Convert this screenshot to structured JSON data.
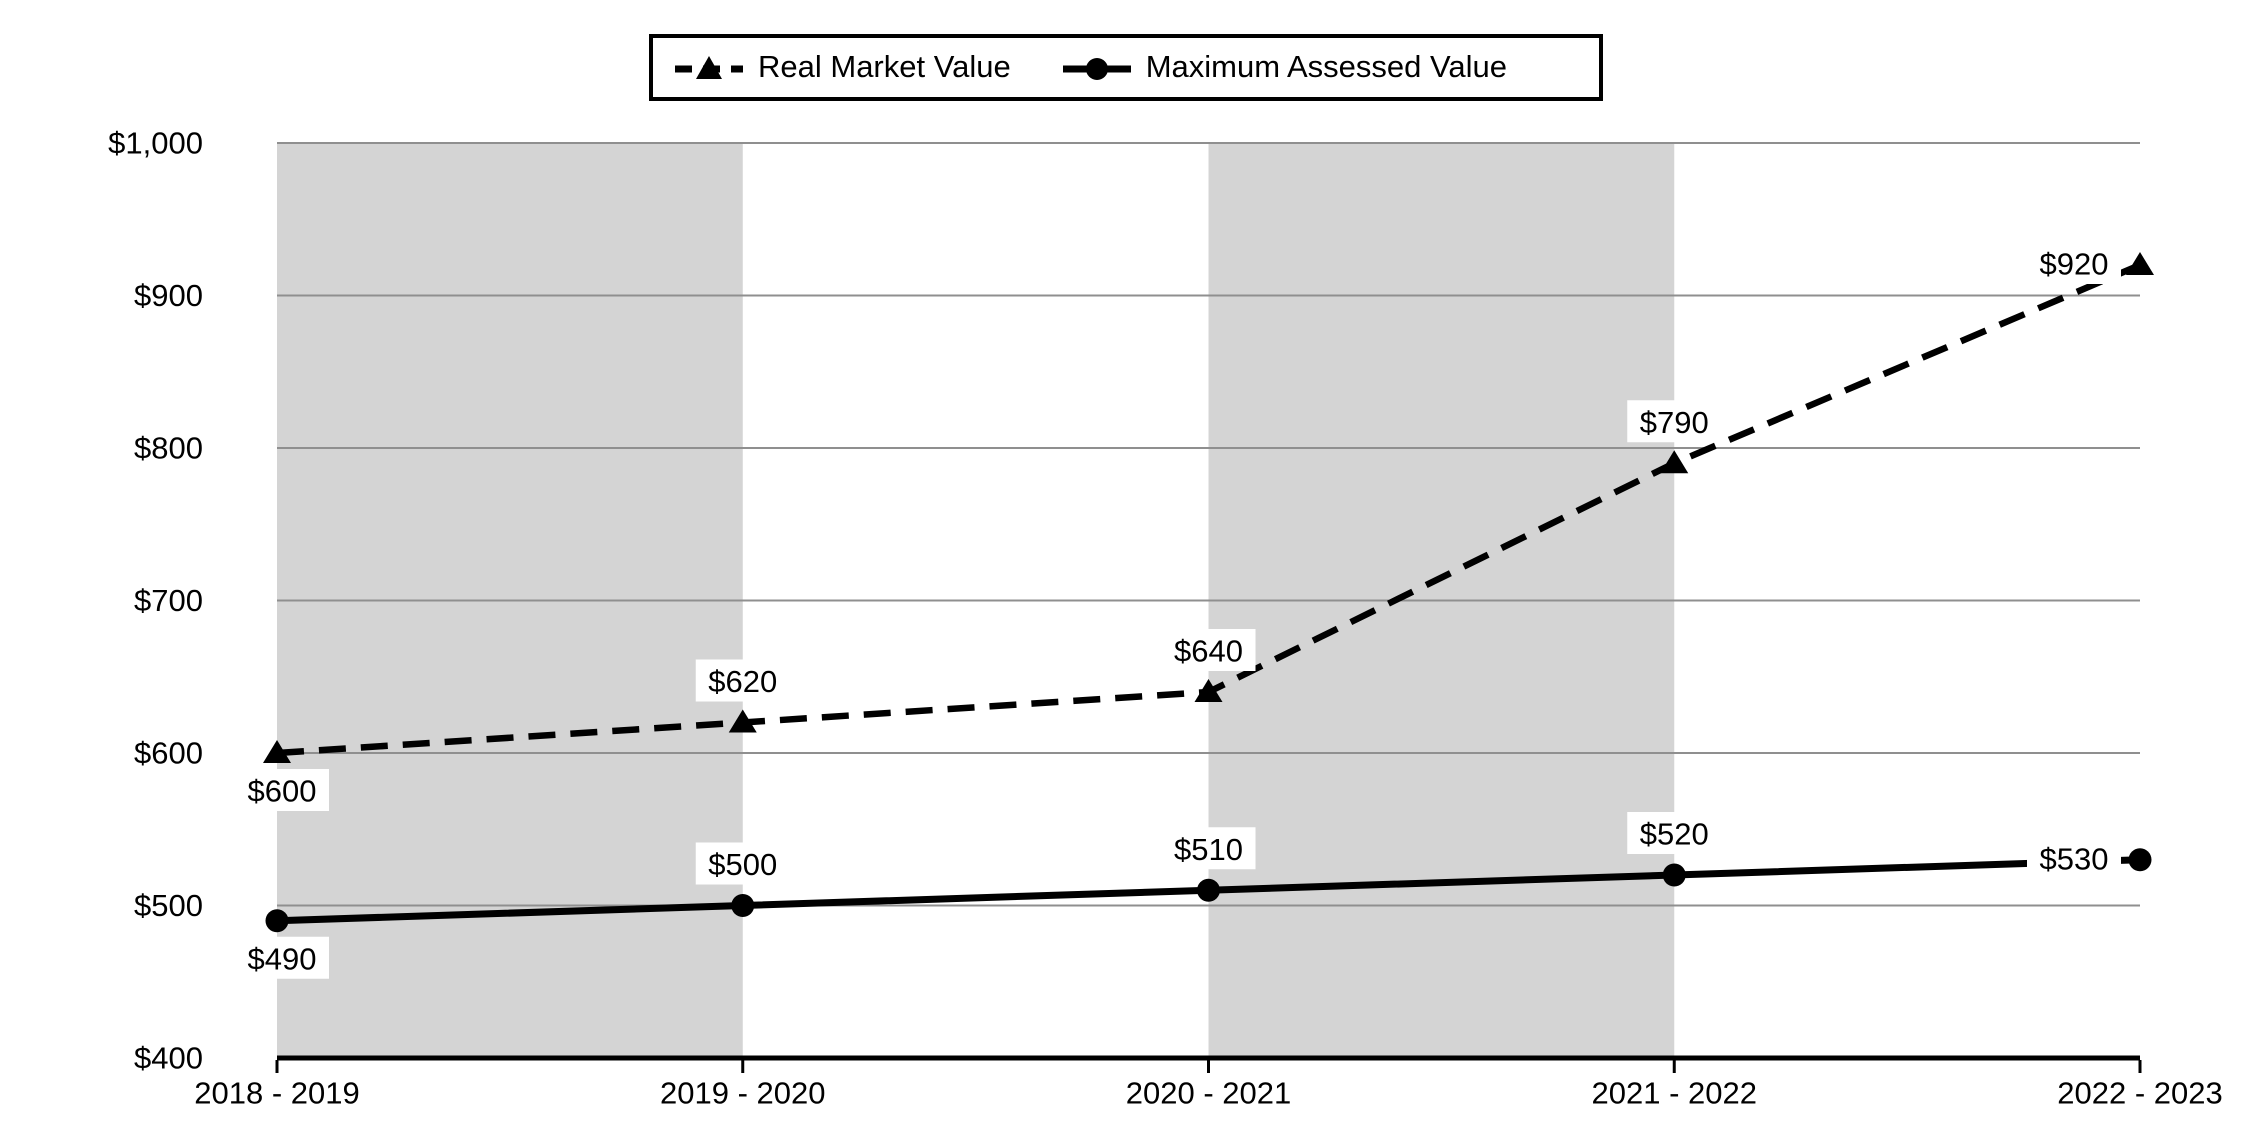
{
  "chart_data": {
    "type": "line",
    "title": "",
    "xlabel": "",
    "ylabel": "",
    "categories": [
      "2018 - 2019",
      "2019 - 2020",
      "2020 - 2021",
      "2021 - 2022",
      "2022 - 2023"
    ],
    "series": [
      {
        "name": "Real Market Value",
        "values": [
          600,
          620,
          640,
          790,
          920
        ],
        "line_style": "dashed",
        "marker": "triangle",
        "color": "#000000",
        "data_labels": [
          "$600",
          "$620",
          "$640",
          "$790",
          "$920"
        ],
        "label_placement": [
          "below",
          "above",
          "above",
          "above",
          "left"
        ]
      },
      {
        "name": "Maximum Assessed Value",
        "values": [
          490,
          500,
          510,
          520,
          530
        ],
        "line_style": "solid",
        "marker": "circle",
        "color": "#000000",
        "data_labels": [
          "$490",
          "$500",
          "$510",
          "$520",
          "$530"
        ],
        "label_placement": [
          "below",
          "above",
          "above",
          "above",
          "left"
        ]
      }
    ],
    "ylim": [
      400,
      1000
    ],
    "y_tick_step": 100,
    "y_tick_labels": [
      "$400",
      "$500",
      "$600",
      "$700",
      "$800",
      "$900",
      "$1,000"
    ],
    "grid": true,
    "legend_position": "top-center",
    "shaded_bands": [
      {
        "from_category": 0,
        "to_category": 1
      },
      {
        "from_category": 2,
        "to_category": 3
      }
    ],
    "colors": {
      "background": "#ffffff",
      "band": "#d4d4d4",
      "gridline": "#8f8f8f",
      "axis": "#000000",
      "series": "#000000",
      "label_background": "#ffffff"
    }
  }
}
